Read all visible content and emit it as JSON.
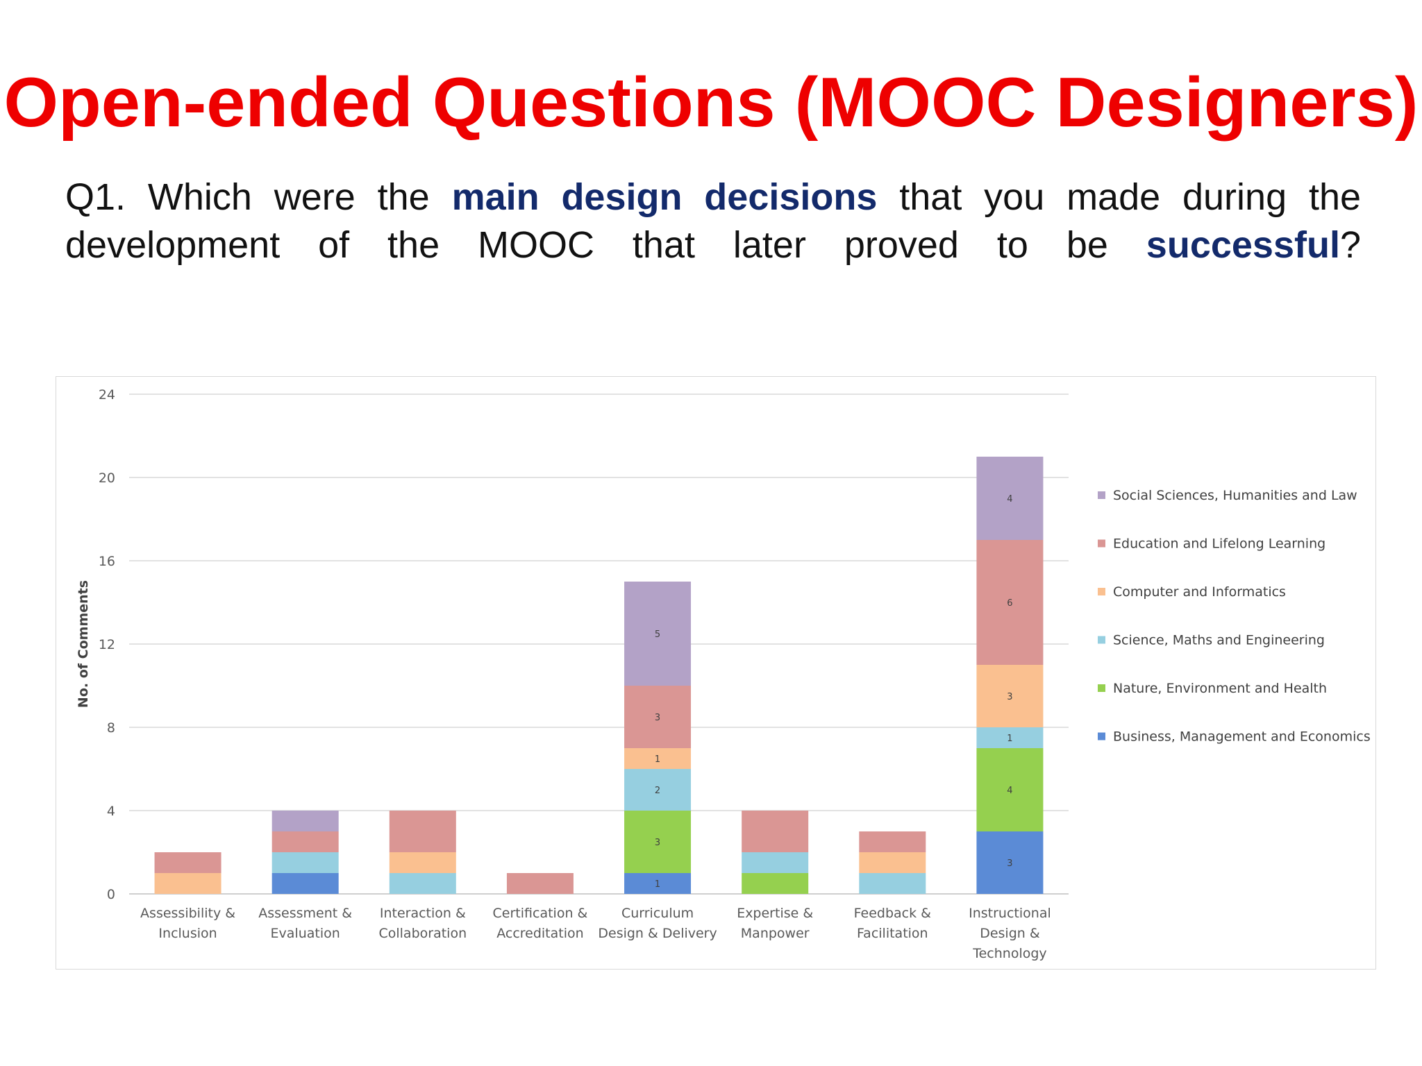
{
  "slide": {
    "title": "Open-ended Questions (MOOC Designers)",
    "question": {
      "prefix": "Q1. Which were the ",
      "emphasis1": "main design decisions",
      "middle": " that you made during the development of the MOOC that later proved to be ",
      "emphasis2": "successful",
      "suffix": "?"
    }
  },
  "colors": {
    "title": "#ee0000",
    "emphasis": "#132a6b"
  },
  "chart_data": {
    "type": "bar",
    "stacked": true,
    "title": "",
    "xlabel": "",
    "ylabel": "No. of Comments",
    "ylim": [
      0,
      24
    ],
    "yticks": [
      0,
      4,
      8,
      12,
      16,
      20,
      24
    ],
    "grid": true,
    "legend_position": "right",
    "categories": [
      [
        "Assessibility &",
        "Inclusion"
      ],
      [
        "Assessment &",
        "Evaluation"
      ],
      [
        "Interaction &",
        "Collaboration"
      ],
      [
        "Certification &",
        "Accreditation"
      ],
      [
        "Curriculum",
        "Design & Delivery"
      ],
      [
        "Expertise &",
        "Manpower"
      ],
      [
        "Feedback &",
        "Facilitation"
      ],
      [
        "Instructional",
        "Design &",
        "Technology"
      ]
    ],
    "series": [
      {
        "name": "Business, Management and Economics",
        "color": "#5b8bd6",
        "values": [
          0,
          1,
          0,
          0,
          1,
          0,
          0,
          3
        ]
      },
      {
        "name": "Nature, Environment and Health",
        "color": "#95d04f",
        "values": [
          0,
          0,
          0,
          0,
          3,
          1,
          0,
          4
        ]
      },
      {
        "name": "Science, Maths and Engineering",
        "color": "#96cfe0",
        "values": [
          0,
          1,
          1,
          0,
          2,
          1,
          1,
          1
        ]
      },
      {
        "name": "Computer and Informatics",
        "color": "#fac090",
        "values": [
          1,
          0,
          1,
          0,
          1,
          0,
          1,
          3
        ]
      },
      {
        "name": "Education and Lifelong Learning",
        "color": "#da9694",
        "values": [
          1,
          1,
          2,
          1,
          3,
          2,
          1,
          6
        ]
      },
      {
        "name": "Social Sciences, Humanities and Law",
        "color": "#b3a2c7",
        "values": [
          0,
          1,
          0,
          0,
          5,
          0,
          0,
          4
        ]
      }
    ],
    "data_labels_on_categories": [
      4,
      7
    ]
  }
}
